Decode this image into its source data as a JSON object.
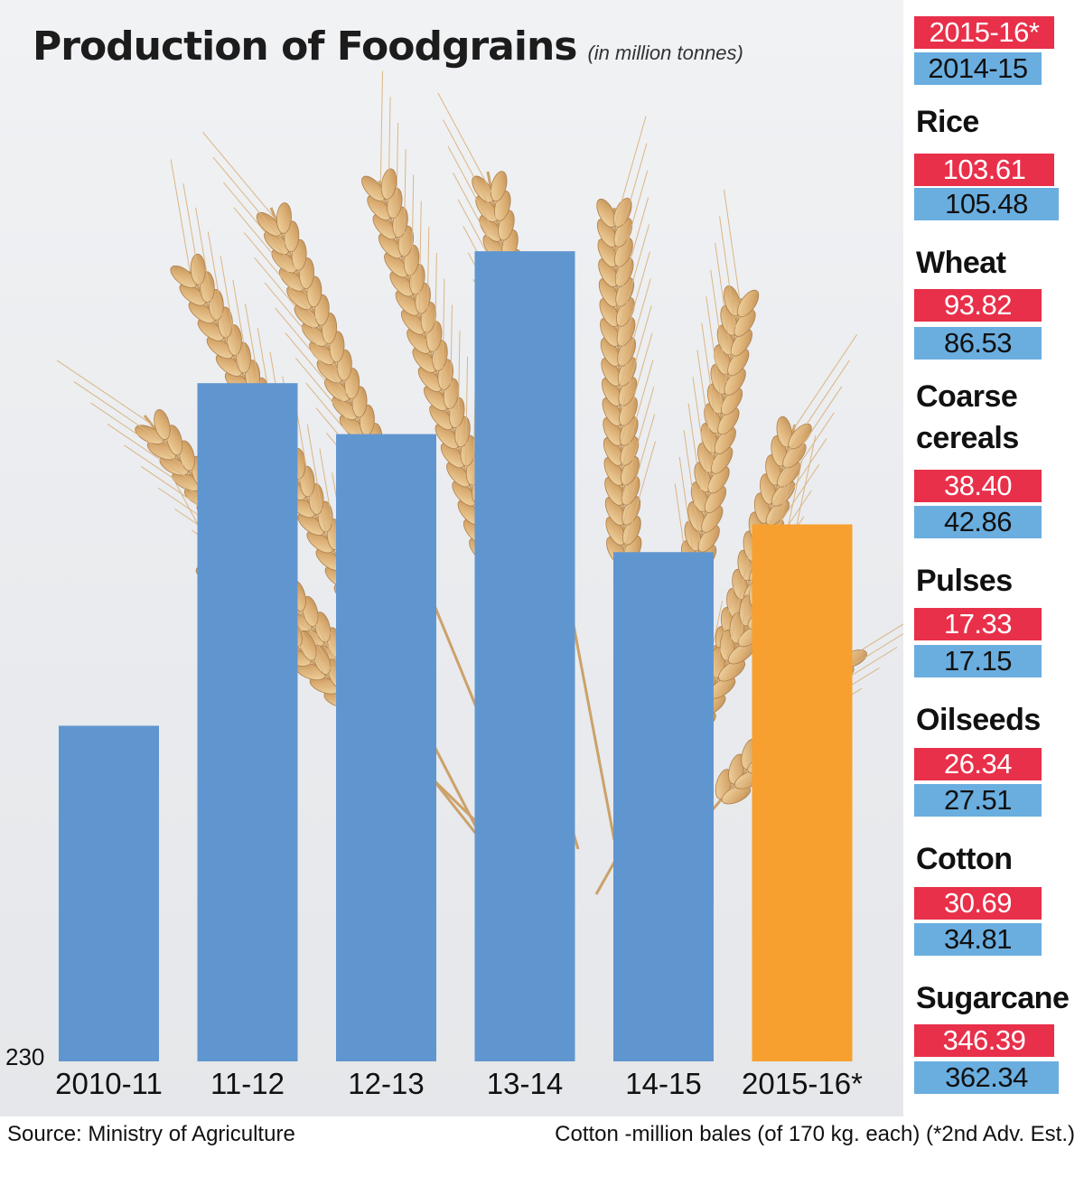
{
  "chart_data": {
    "type": "bar",
    "title": "Production of Foodgrains",
    "subtitle": "(in million tonnes)",
    "categories": [
      "2010-11",
      "11-12",
      "12-13",
      "13-14",
      "14-15",
      "2015-16*"
    ],
    "values": [
      244.5,
      259.3,
      257.1,
      265.0,
      252.0,
      253.2
    ],
    "ylim": [
      230,
      270
    ],
    "y_baseline_label": "230",
    "colors": {
      "default": "#6096d0",
      "highlight": "#f7a030"
    },
    "highlight_index": 5,
    "grid": false
  },
  "legend": {
    "current_label": "2015-16*",
    "previous_label": "2014-15",
    "current_color": "#e8304a",
    "previous_color": "#6aaee0"
  },
  "crops": [
    {
      "name": "Rice",
      "current": "103.61",
      "previous": "105.48"
    },
    {
      "name": "Wheat",
      "current": "93.82",
      "previous": "86.53"
    },
    {
      "name": "Coarse\ncereals",
      "current": "38.40",
      "previous": "42.86"
    },
    {
      "name": "Pulses",
      "current": "17.33",
      "previous": "17.15"
    },
    {
      "name": "Oilseeds",
      "current": "26.34",
      "previous": "27.51"
    },
    {
      "name": "Cotton",
      "current": "30.69",
      "previous": "34.81"
    },
    {
      "name": "Sugarcane",
      "current": "346.39",
      "previous": "362.34"
    }
  ],
  "footer": {
    "source": "Source: Ministry of Agriculture",
    "note": "Cotton -million bales (of 170 kg. each) (*2nd Adv. Est.)"
  }
}
